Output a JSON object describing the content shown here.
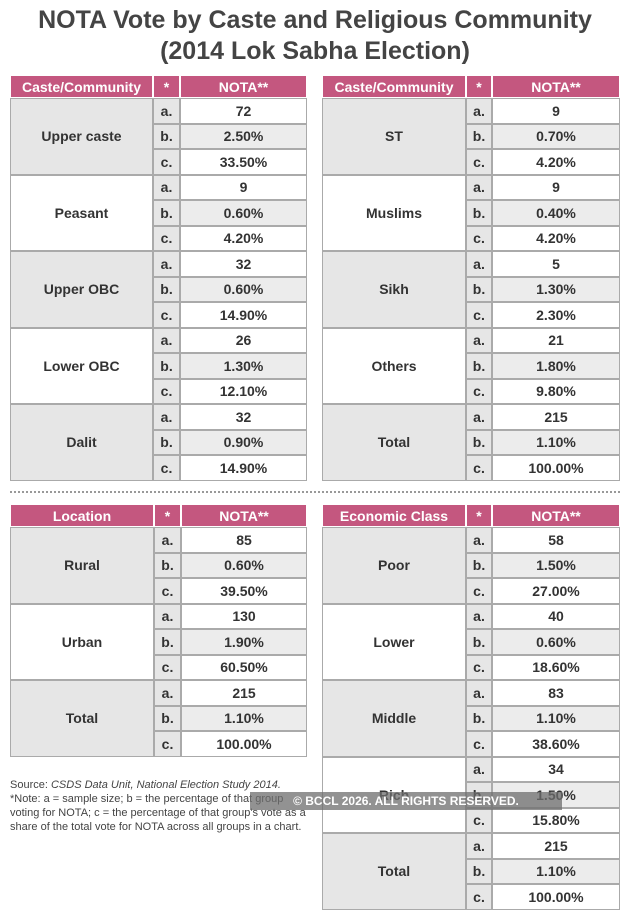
{
  "title": [
    "NOTA Vote by Caste and Religious Community",
    "(2014 Lok Sabha Election)"
  ],
  "tables": [
    {
      "headers": [
        "Caste/Community",
        "*",
        "NOTA**"
      ],
      "groups": [
        {
          "name": "Upper caste",
          "rows": [
            [
              "a.",
              "72"
            ],
            [
              "b.",
              "2.50%"
            ],
            [
              "c.",
              "33.50%"
            ]
          ]
        },
        {
          "name": "Peasant",
          "rows": [
            [
              "a.",
              "9"
            ],
            [
              "b.",
              "0.60%"
            ],
            [
              "c.",
              "4.20%"
            ]
          ]
        },
        {
          "name": "Upper OBC",
          "rows": [
            [
              "a.",
              "32"
            ],
            [
              "b.",
              "0.60%"
            ],
            [
              "c.",
              "14.90%"
            ]
          ]
        },
        {
          "name": "Lower OBC",
          "rows": [
            [
              "a.",
              "26"
            ],
            [
              "b.",
              "1.30%"
            ],
            [
              "c.",
              "12.10%"
            ]
          ]
        },
        {
          "name": "Dalit",
          "rows": [
            [
              "a.",
              "32"
            ],
            [
              "b.",
              "0.90%"
            ],
            [
              "c.",
              "14.90%"
            ]
          ]
        }
      ]
    },
    {
      "headers": [
        "Caste/Community",
        "*",
        "NOTA**"
      ],
      "groups": [
        {
          "name": "ST",
          "rows": [
            [
              "a.",
              "9"
            ],
            [
              "b.",
              "0.70%"
            ],
            [
              "c.",
              "4.20%"
            ]
          ]
        },
        {
          "name": "Muslims",
          "rows": [
            [
              "a.",
              "9"
            ],
            [
              "b.",
              "0.40%"
            ],
            [
              "c.",
              "4.20%"
            ]
          ]
        },
        {
          "name": "Sikh",
          "rows": [
            [
              "a.",
              "5"
            ],
            [
              "b.",
              "1.30%"
            ],
            [
              "c.",
              "2.30%"
            ]
          ]
        },
        {
          "name": "Others",
          "rows": [
            [
              "a.",
              "21"
            ],
            [
              "b.",
              "1.80%"
            ],
            [
              "c.",
              "9.80%"
            ]
          ]
        },
        {
          "name": "Total",
          "rows": [
            [
              "a.",
              "215"
            ],
            [
              "b.",
              "1.10%"
            ],
            [
              "c.",
              "100.00%"
            ]
          ]
        }
      ]
    },
    {
      "headers": [
        "Location",
        "*",
        "NOTA**"
      ],
      "groups": [
        {
          "name": "Rural",
          "rows": [
            [
              "a.",
              "85"
            ],
            [
              "b.",
              "0.60%"
            ],
            [
              "c.",
              "39.50%"
            ]
          ]
        },
        {
          "name": "Urban",
          "rows": [
            [
              "a.",
              "130"
            ],
            [
              "b.",
              "1.90%"
            ],
            [
              "c.",
              "60.50%"
            ]
          ]
        },
        {
          "name": "Total",
          "rows": [
            [
              "a.",
              "215"
            ],
            [
              "b.",
              "1.10%"
            ],
            [
              "c.",
              "100.00%"
            ]
          ]
        }
      ]
    },
    {
      "headers": [
        "Economic Class",
        "*",
        "NOTA**"
      ],
      "groups": [
        {
          "name": "Poor",
          "rows": [
            [
              "a.",
              "58"
            ],
            [
              "b.",
              "1.50%"
            ],
            [
              "c.",
              "27.00%"
            ]
          ]
        },
        {
          "name": "Lower",
          "rows": [
            [
              "a.",
              "40"
            ],
            [
              "b.",
              "0.60%"
            ],
            [
              "c.",
              "18.60%"
            ]
          ]
        },
        {
          "name": "Middle",
          "rows": [
            [
              "a.",
              "83"
            ],
            [
              "b.",
              "1.10%"
            ],
            [
              "c.",
              "38.60%"
            ]
          ]
        },
        {
          "name": "Rich",
          "rows": [
            [
              "a.",
              "34"
            ],
            [
              "b.",
              "1.50%"
            ],
            [
              "c.",
              "15.80%"
            ]
          ]
        },
        {
          "name": "Total",
          "rows": [
            [
              "a.",
              "215"
            ],
            [
              "b.",
              "1.10%"
            ],
            [
              "c.",
              "100.00%"
            ]
          ]
        }
      ]
    }
  ],
  "source_label": "Source:",
  "source": "CSDS Data Unit, National Election Study 2014.",
  "note": "*Note: a = sample size; b = the percentage of that group voting for NOTA; c = the percentage of that group's vote as a share of the total vote for NOTA across all groups in a chart.",
  "watermark": "© BCCL 2026. ALL RIGHTS RESERVED."
}
